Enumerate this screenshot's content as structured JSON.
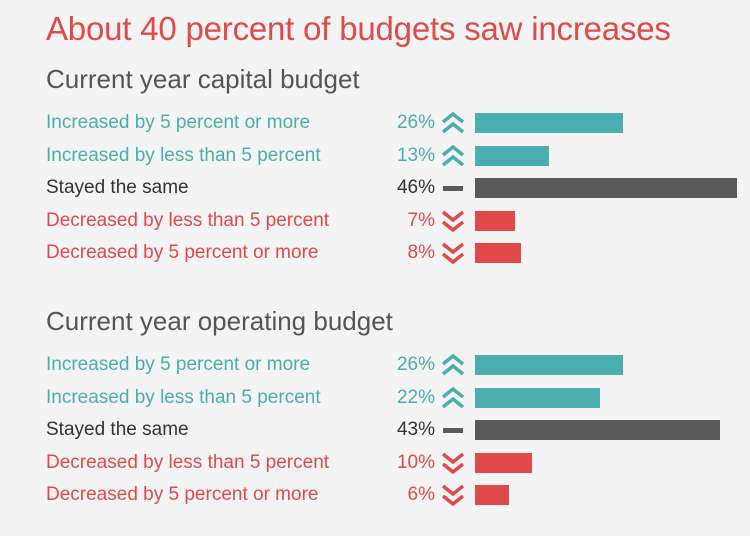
{
  "title": "About 40 percent of budgets saw increases",
  "colors": {
    "increase": "#4aaeae",
    "same": "#5a5a5a",
    "decrease": "#e04a4a",
    "title": "#e04a4a",
    "section_title": "#555555"
  },
  "chart_data": [
    {
      "type": "bar",
      "title": "Current year capital budget",
      "categories": [
        "Increased by 5 percent or more",
        "Increased by less than 5 percent",
        "Stayed the same",
        "Decreased by less than 5 percent",
        "Decreased by 5 percent or more"
      ],
      "values": [
        26,
        13,
        46,
        7,
        8
      ],
      "value_labels": [
        "26%",
        "13%",
        "46%",
        "7%",
        "8%"
      ],
      "direction": [
        "up",
        "up",
        "same",
        "down",
        "down"
      ],
      "xlim": [
        0,
        46
      ],
      "grid": false,
      "legend": "none"
    },
    {
      "type": "bar",
      "title": "Current year operating budget",
      "categories": [
        "Increased by 5 percent or more",
        "Increased by less than 5 percent",
        "Stayed the same",
        "Decreased by less than 5 percent",
        "Decreased by 5 percent or more"
      ],
      "values": [
        26,
        22,
        43,
        10,
        6
      ],
      "value_labels": [
        "26%",
        "22%",
        "43%",
        "10%",
        "6%"
      ],
      "direction": [
        "up",
        "up",
        "same",
        "down",
        "down"
      ],
      "xlim": [
        0,
        46
      ],
      "grid": false,
      "legend": "none"
    }
  ]
}
